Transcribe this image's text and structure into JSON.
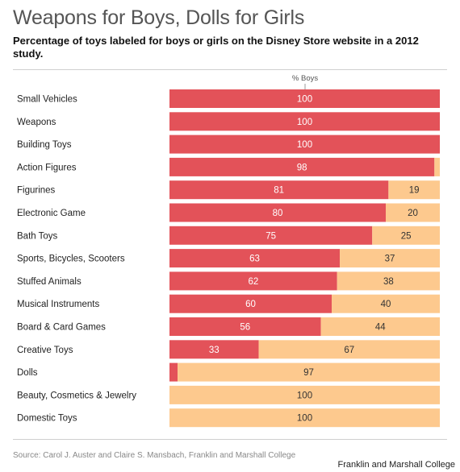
{
  "title": "Weapons for Boys, Dolls for Girls",
  "subtitle": "Percentage of toys labeled for boys or girls on the Disney Store website in a 2012 study.",
  "source": "Source: Carol J. Auster and Claire S. Mansbach, Franklin and Marshall College",
  "credit": "Franklin and Marshall College",
  "colors": {
    "boys": "#e35259",
    "girls": "#fdc98e",
    "text_on_boys": "#ffffff",
    "text_on_girls": "#333333"
  },
  "chart_data": {
    "type": "bar",
    "orientation": "horizontal",
    "stacked": true,
    "column_label": "% Boys",
    "categories": [
      "Small Vehicles",
      "Weapons",
      "Building Toys",
      "Action Figures",
      "Figurines",
      "Electronic Game",
      "Bath Toys",
      "Sports, Bicycles, Scooters",
      "Stuffed Animals",
      "Musical Instruments",
      "Board & Card Games",
      "Creative Toys",
      "Dolls",
      "Beauty, Cosmetics & Jewelry",
      "Domestic Toys"
    ],
    "series": [
      {
        "values": [
          100,
          100,
          100,
          98,
          81,
          80,
          75,
          63,
          62,
          60,
          56,
          33,
          3,
          0,
          0
        ]
      },
      {
        "values": [
          0,
          0,
          0,
          2,
          19,
          20,
          25,
          37,
          38,
          40,
          44,
          67,
          97,
          100,
          100
        ]
      }
    ],
    "labels_boys": [
      "100",
      "100",
      "100",
      "98",
      "81",
      "80",
      "75",
      "63",
      "62",
      "60",
      "56",
      "33",
      "",
      "",
      ""
    ],
    "labels_girls": [
      "",
      "",
      "",
      "",
      "19",
      "20",
      "25",
      "37",
      "38",
      "40",
      "44",
      "67",
      "97",
      "100",
      "100"
    ],
    "xlim": [
      0,
      100
    ]
  }
}
